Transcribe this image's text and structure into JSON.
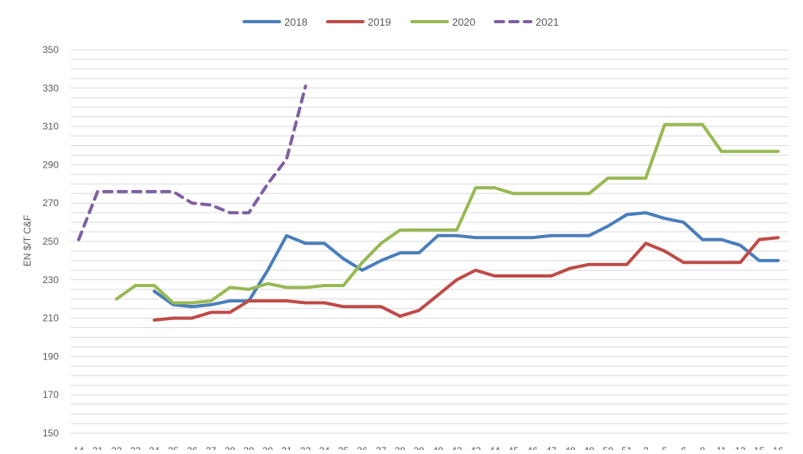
{
  "chart_data": {
    "type": "line",
    "title": "",
    "ylabel": "EN $/T C&F",
    "xlabel": "",
    "ylim": [
      150,
      350
    ],
    "yticks": [
      150,
      170,
      190,
      210,
      230,
      250,
      270,
      290,
      310,
      330,
      350
    ],
    "grid": "horizontal",
    "legend_position": "top",
    "x_tick_labels": [
      "14",
      "21",
      "22",
      "23",
      "24",
      "25",
      "26",
      "27",
      "28",
      "29",
      "30",
      "31",
      "33",
      "34",
      "35",
      "36",
      "37",
      "38",
      "39",
      "40",
      "42",
      "43",
      "44",
      "45",
      "46",
      "47",
      "48",
      "49",
      "50",
      "51",
      "2",
      "5",
      "6",
      "8",
      "11",
      "13",
      "15",
      "16"
    ],
    "series": [
      {
        "name": "2018",
        "color": "#4a7ebb",
        "dashed": false,
        "values": [
          null,
          null,
          null,
          null,
          224,
          217,
          216,
          217,
          219,
          219,
          235,
          253,
          249,
          249,
          241,
          235,
          240,
          244,
          244,
          253,
          253,
          252,
          252,
          252,
          252,
          253,
          253,
          253,
          258,
          264,
          265,
          262,
          260,
          251,
          251,
          248,
          240,
          240
        ]
      },
      {
        "name": "2019",
        "color": "#be4b48",
        "dashed": false,
        "values": [
          null,
          null,
          null,
          null,
          209,
          210,
          210,
          213,
          213,
          219,
          219,
          219,
          218,
          218,
          216,
          216,
          216,
          211,
          214,
          222,
          230,
          235,
          232,
          232,
          232,
          232,
          236,
          238,
          238,
          238,
          249,
          245,
          239,
          239,
          239,
          239,
          251,
          252
        ]
      },
      {
        "name": "2020",
        "color": "#98b954",
        "dashed": false,
        "values": [
          null,
          null,
          220,
          227,
          227,
          218,
          218,
          219,
          226,
          225,
          228,
          226,
          226,
          227,
          227,
          239,
          249,
          256,
          256,
          256,
          256,
          278,
          278,
          275,
          275,
          275,
          275,
          275,
          283,
          283,
          283,
          311,
          311,
          311,
          297,
          297,
          297,
          297
        ]
      },
      {
        "name": "2021",
        "color": "#7d60a0",
        "dashed": true,
        "values": [
          251,
          276,
          276,
          276,
          276,
          276,
          270,
          269,
          265,
          265,
          280,
          293,
          331,
          null,
          null,
          null,
          null,
          null,
          null,
          null,
          null,
          null,
          null,
          null,
          null,
          null,
          null,
          null,
          null,
          null,
          null,
          null,
          null,
          null,
          null,
          null,
          null,
          null
        ]
      }
    ]
  }
}
